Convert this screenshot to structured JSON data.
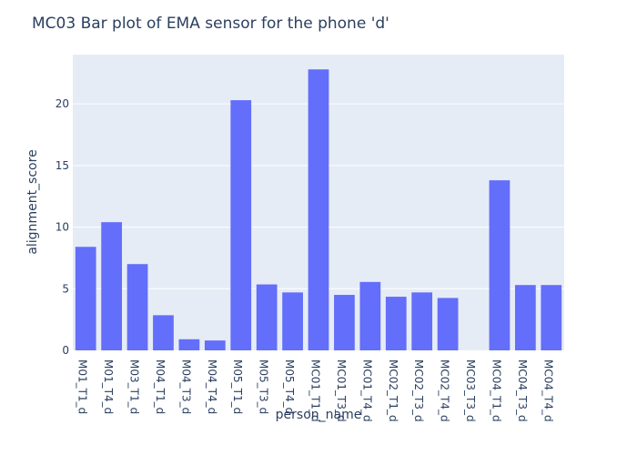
{
  "chart_data": {
    "type": "bar",
    "title": "MC03 Bar plot of EMA sensor for the phone 'd'",
    "xlabel": "person_name",
    "ylabel": "alignment_score",
    "categories": [
      "M01_T1_d",
      "M01_T4_d",
      "M03_T1_d",
      "M04_T1_d",
      "M04_T3_d",
      "M04_T4_d",
      "M05_T1_d",
      "M05_T3_d",
      "M05_T4_d",
      "MC01_T1_d",
      "MC01_T3_d",
      "MC01_T4_d",
      "MC02_T1_d",
      "MC02_T3_d",
      "MC02_T4_d",
      "MC03_T3_d",
      "MC04_T1_d",
      "MC04_T3_d",
      "MC04_T4_d"
    ],
    "values": [
      8.4,
      10.4,
      7.0,
      2.85,
      0.9,
      0.8,
      20.3,
      5.35,
      4.7,
      22.8,
      4.5,
      5.55,
      4.35,
      4.7,
      4.25,
      0,
      13.8,
      5.3,
      5.3
    ],
    "yticks": [
      0,
      5,
      10,
      15,
      20
    ],
    "ylim": [
      0,
      24
    ],
    "bar_color": "#636efa",
    "plot_bg": "#e5ecf6",
    "grid": true
  }
}
